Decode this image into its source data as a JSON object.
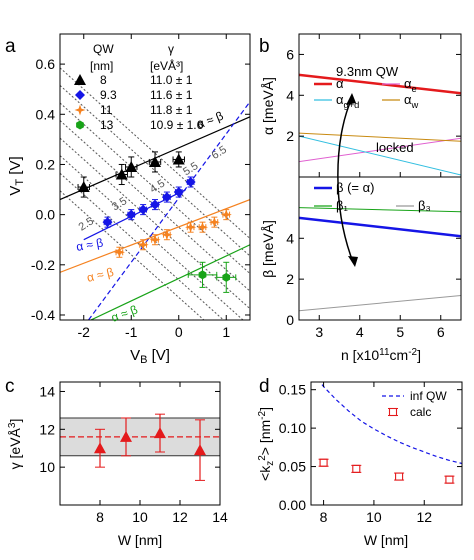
{
  "panel_labels": {
    "a": "a",
    "b": "b",
    "c": "c",
    "d": "d"
  },
  "chart_data": [
    {
      "panel": "a",
      "type": "scatter",
      "xlabel": "V_B [V]",
      "ylabel": "V_T [V]",
      "xlim": [
        -2.5,
        1.5
      ],
      "ylim": [
        -0.42,
        0.72
      ],
      "xticks": [
        "-2",
        "-1",
        "0",
        "1"
      ],
      "yticks": [
        "-0.4",
        "-0.2",
        "0.0",
        "0.2",
        "0.4",
        "0.6"
      ],
      "legend": {
        "col_qw": "QW",
        "col_qw_unit": "[nm]",
        "col_gamma": "γ",
        "col_gamma_unit": "[eVÅ³]",
        "rows": [
          {
            "marker": "triangle",
            "color": "#000000",
            "qw": "8",
            "gamma": "11.0 ± 1"
          },
          {
            "marker": "diamond",
            "color": "#1515e6",
            "qw": "9.3",
            "gamma": "11.6 ± 1"
          },
          {
            "marker": "star",
            "color": "#f58220",
            "qw": "11",
            "gamma": "11.8 ± 1"
          },
          {
            "marker": "hexagon",
            "color": "#18a318",
            "qw": "13",
            "gamma": "10.9 ± 1.6"
          }
        ]
      },
      "series": [
        {
          "name": "8",
          "color": "#000000",
          "marker": "triangle",
          "x": [
            -2.0,
            -1.2,
            -1.0,
            -0.5,
            0.0
          ],
          "y": [
            0.11,
            0.16,
            0.19,
            0.21,
            0.22
          ],
          "xerr": [
            0.12,
            0.12,
            0.12,
            0.12,
            0.12
          ],
          "yerr": [
            0.04,
            0.04,
            0.04,
            0.04,
            0.03
          ]
        },
        {
          "name": "9.3",
          "color": "#1515e6",
          "marker": "diamond",
          "x": [
            -1.5,
            -1.0,
            -0.75,
            -0.5,
            -0.25,
            0.0,
            0.25
          ],
          "y": [
            -0.03,
            0.0,
            0.02,
            0.04,
            0.07,
            0.09,
            0.13
          ],
          "xerr": [
            0.07,
            0.07,
            0.07,
            0.07,
            0.07,
            0.07,
            0.07
          ],
          "yerr": [
            0.02,
            0.02,
            0.02,
            0.02,
            0.02,
            0.02,
            0.02
          ]
        },
        {
          "name": "11",
          "color": "#f58220",
          "marker": "star",
          "x": [
            -1.25,
            -0.75,
            -0.5,
            -0.25,
            0.25,
            0.5,
            0.75,
            1.0
          ],
          "y": [
            -0.15,
            -0.12,
            -0.1,
            -0.08,
            -0.05,
            -0.05,
            -0.03,
            0.0
          ],
          "xerr": [
            0.07,
            0.07,
            0.07,
            0.07,
            0.07,
            0.07,
            0.07,
            0.07
          ],
          "yerr": [
            0.02,
            0.02,
            0.02,
            0.02,
            0.02,
            0.02,
            0.02,
            0.02
          ]
        },
        {
          "name": "13",
          "color": "#18a318",
          "marker": "hexagon",
          "x": [
            0.5,
            1.0
          ],
          "y": [
            -0.24,
            -0.25
          ],
          "xerr": [
            0.3,
            0.2
          ],
          "yerr": [
            0.05,
            0.06
          ]
        }
      ],
      "fit_lines": [
        {
          "color": "#000000",
          "style": "solid",
          "x": [
            -2.5,
            1.5
          ],
          "y": [
            0.06,
            0.39
          ]
        },
        {
          "color": "#1515e6",
          "style": "solid",
          "x": [
            -2.0,
            0.15
          ],
          "y": [
            -0.1,
            0.1
          ]
        },
        {
          "color": "#1515e6",
          "style": "dashed",
          "x": [
            -1.9,
            1.5
          ],
          "y": [
            -0.42,
            0.45
          ]
        },
        {
          "color": "#f58220",
          "style": "solid",
          "x": [
            -2.5,
            1.5
          ],
          "y": [
            -0.23,
            0.06
          ]
        },
        {
          "color": "#18a318",
          "style": "solid",
          "x": [
            -1.85,
            1.5
          ],
          "y": [
            -0.42,
            -0.12
          ]
        }
      ],
      "gamma_contours": {
        "color": "#555555",
        "labels": [
          "2.5",
          "3.5",
          "4.5",
          "5.5",
          "6.5"
        ]
      },
      "annotations": [
        "α ≈ β",
        "α ≈ β",
        "α ≈ β",
        "α ≈ β"
      ]
    },
    {
      "panel": "b",
      "type": "line",
      "xlabel": "n [x10¹¹cm⁻²]",
      "xticks": [
        "3",
        "4",
        "5",
        "6"
      ],
      "xlim": [
        2.5,
        6.5
      ],
      "title": "9.3nm QW",
      "annotation": "locked",
      "top": {
        "ylabel": "α [meVÅ]",
        "ylim": [
          0,
          7
        ],
        "yticks": [
          "0",
          "2",
          "4",
          "6"
        ],
        "legend": [
          {
            "name": "α",
            "color": "#e41a1c"
          },
          {
            "name": "α_e",
            "color": "#e060d0"
          },
          {
            "name": "α_g+d",
            "color": "#33bfe0"
          },
          {
            "name": "α_w",
            "color": "#c88a10"
          }
        ],
        "series": [
          {
            "name": "α",
            "color": "#e41a1c",
            "width": 2.5,
            "x": [
              2.5,
              6.5
            ],
            "y": [
              5.0,
              4.1
            ]
          },
          {
            "name": "α_e",
            "color": "#e060d0",
            "width": 1,
            "x": [
              2.5,
              6.5
            ],
            "y": [
              0.75,
              1.9
            ]
          },
          {
            "name": "α_g+d",
            "color": "#33bfe0",
            "width": 1,
            "x": [
              2.5,
              6.5
            ],
            "y": [
              2.0,
              0.1
            ]
          },
          {
            "name": "α_w",
            "color": "#c88a10",
            "width": 1,
            "x": [
              2.5,
              6.5
            ],
            "y": [
              2.15,
              1.75
            ]
          }
        ]
      },
      "bottom": {
        "ylabel": "β [meVÅ]",
        "ylim": [
          0,
          7
        ],
        "yticks": [
          "0",
          "2",
          "4",
          "6"
        ],
        "legend": [
          {
            "name": "β (= α)",
            "color": "#1515e6"
          },
          {
            "name": "β₁",
            "color": "#18a318"
          },
          {
            "name": "β₃",
            "color": "#999999"
          }
        ],
        "series": [
          {
            "name": "β (= α)",
            "color": "#1515e6",
            "width": 2.5,
            "x": [
              2.5,
              6.5
            ],
            "y": [
              5.0,
              4.1
            ]
          },
          {
            "name": "β₁",
            "color": "#18a318",
            "width": 1,
            "x": [
              2.5,
              6.5
            ],
            "y": [
              5.5,
              5.3
            ]
          },
          {
            "name": "β₃",
            "color": "#999999",
            "width": 1,
            "x": [
              2.5,
              6.5
            ],
            "y": [
              0.45,
              1.2
            ]
          }
        ]
      }
    },
    {
      "panel": "c",
      "type": "scatter",
      "xlabel": "W [nm]",
      "ylabel": "γ [eVÅ³]",
      "xlim": [
        6,
        14
      ],
      "ylim": [
        8,
        14.5
      ],
      "xticks": [
        "8",
        "10",
        "12",
        "14"
      ],
      "yticks": [
        "10",
        "12",
        "14"
      ],
      "band": {
        "mean": 11.6,
        "lo": 10.6,
        "hi": 12.6,
        "color": "#dcdcdc"
      },
      "series": [
        {
          "color": "#e41a1c",
          "x": [
            8,
            9.3,
            11,
            13
          ],
          "y": [
            11.0,
            11.6,
            11.8,
            10.9
          ],
          "yerr": [
            1.0,
            1.0,
            1.0,
            1.6
          ]
        }
      ]
    },
    {
      "panel": "d",
      "type": "scatter",
      "xlabel": "W [nm]",
      "ylabel": "<k_z²> [nm⁻²]",
      "xlim": [
        7.5,
        13.5
      ],
      "ylim": [
        0,
        0.16
      ],
      "xticks": [
        "8",
        "10",
        "12"
      ],
      "yticks": [
        "0.00",
        "0.05",
        "0.10",
        "0.15"
      ],
      "legend": [
        {
          "name": "inf QW",
          "color": "#1515e6",
          "style": "dashed"
        },
        {
          "name": "calc",
          "color": "#e41a1c",
          "style": "marker"
        }
      ],
      "series": [
        {
          "name": "inf QW",
          "type": "line",
          "color": "#1515e6",
          "x": [
            7.6,
            8,
            8.5,
            9,
            9.5,
            10,
            10.5,
            11,
            11.5,
            12,
            12.5,
            13,
            13.5
          ],
          "y": [
            0.171,
            0.154,
            0.137,
            0.122,
            0.109,
            0.099,
            0.09,
            0.082,
            0.075,
            0.069,
            0.063,
            0.058,
            0.054
          ]
        },
        {
          "name": "calc",
          "type": "scatter",
          "color": "#e41a1c",
          "x": [
            8,
            9.3,
            11,
            13
          ],
          "y": [
            0.055,
            0.047,
            0.037,
            0.033
          ]
        }
      ]
    }
  ]
}
